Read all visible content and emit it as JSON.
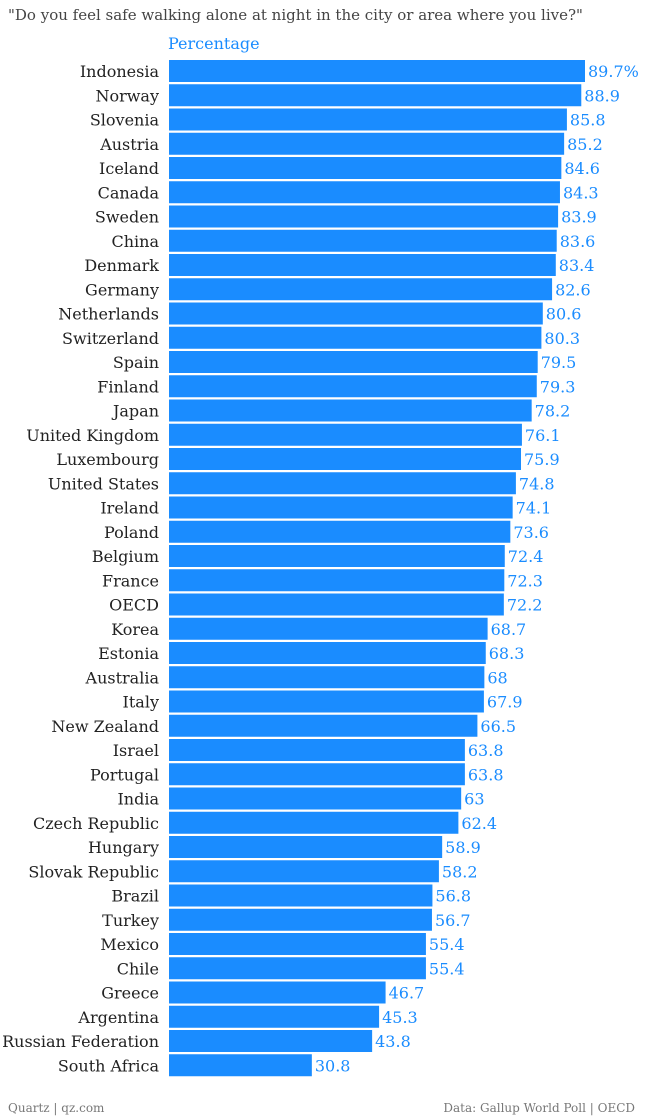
{
  "chart_data": {
    "type": "bar",
    "orientation": "horizontal",
    "title": "\"Do you feel safe walking alone at night in the city or area where you live?\"",
    "subtitle": "Percentage",
    "unit_suffix_first": "%",
    "categories": [
      "Indonesia",
      "Norway",
      "Slovenia",
      "Austria",
      "Iceland",
      "Canada",
      "Sweden",
      "China",
      "Denmark",
      "Germany",
      "Netherlands",
      "Switzerland",
      "Spain",
      "Finland",
      "Japan",
      "United Kingdom",
      "Luxembourg",
      "United States",
      "Ireland",
      "Poland",
      "Belgium",
      "France",
      "OECD",
      "Korea",
      "Estonia",
      "Australia",
      "Italy",
      "New Zealand",
      "Israel",
      "Portugal",
      "India",
      "Czech Republic",
      "Hungary",
      "Slovak Republic",
      "Brazil",
      "Turkey",
      "Mexico",
      "Chile",
      "Greece",
      "Argentina",
      "Russian Federation",
      "South Africa"
    ],
    "values": [
      89.7,
      88.9,
      85.8,
      85.2,
      84.6,
      84.3,
      83.9,
      83.6,
      83.4,
      82.6,
      80.6,
      80.3,
      79.5,
      79.3,
      78.2,
      76.1,
      75.9,
      74.8,
      74.1,
      73.6,
      72.4,
      72.3,
      72.2,
      68.7,
      68.3,
      68,
      67.9,
      66.5,
      63.8,
      63.8,
      63,
      62.4,
      58.9,
      58.2,
      56.8,
      56.7,
      55.4,
      55.4,
      46.7,
      45.3,
      43.8,
      30.8
    ],
    "xlim": [
      0,
      89.7
    ],
    "bar_color": "#1a8cff",
    "label_color": "#1a8cff",
    "grid": false,
    "legend": "none"
  },
  "footer": {
    "source_left": "Quartz | qz.com",
    "source_right": "Data: Gallup World Poll | OECD"
  }
}
